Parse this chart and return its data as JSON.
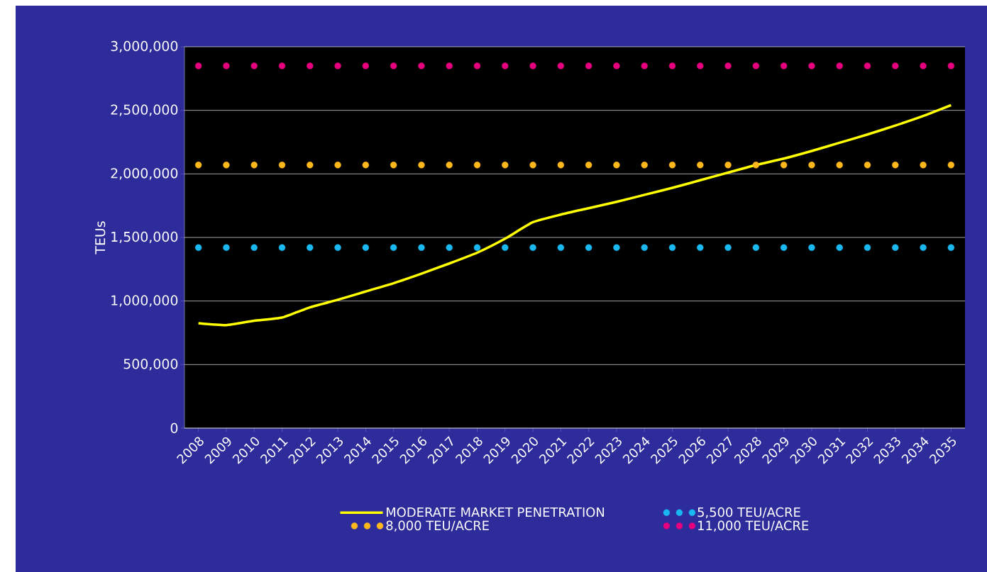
{
  "chart_data": {
    "type": "line",
    "ylabel": "TEUs",
    "categories": [
      "2008",
      "2009",
      "2010",
      "2011",
      "2012",
      "2013",
      "2014",
      "2015",
      "2016",
      "2017",
      "2018",
      "2019",
      "2020",
      "2021",
      "2022",
      "2023",
      "2024",
      "2025",
      "2026",
      "2027",
      "2028",
      "2029",
      "2030",
      "2031",
      "2032",
      "2033",
      "2034",
      "2035"
    ],
    "series": [
      {
        "name": "MODERATE MARKET PENETRATION",
        "color": "#ffff00",
        "marker": "none",
        "line_style": "solid",
        "values": [
          825000,
          810000,
          845000,
          870000,
          950000,
          1010000,
          1075000,
          1140000,
          1215000,
          1295000,
          1380000,
          1490000,
          1620000,
          1680000,
          1730000,
          1780000,
          1835000,
          1890000,
          1950000,
          2010000,
          2070000,
          2120000,
          2180000,
          2245000,
          2310000,
          2380000,
          2455000,
          2540000
        ]
      },
      {
        "name": "5,500 TEU/ACRE",
        "type": "scatter",
        "color": "#1ab8f0",
        "marker": "circle",
        "values": [
          1420000,
          1420000,
          1420000,
          1420000,
          1420000,
          1420000,
          1420000,
          1420000,
          1420000,
          1420000,
          1420000,
          1420000,
          1420000,
          1420000,
          1420000,
          1420000,
          1420000,
          1420000,
          1420000,
          1420000,
          1420000,
          1420000,
          1420000,
          1420000,
          1420000,
          1420000,
          1420000,
          1420000
        ]
      },
      {
        "name": "8,000 TEU/ACRE",
        "type": "scatter",
        "color": "#ffb81c",
        "marker": "circle",
        "values": [
          2070000,
          2070000,
          2070000,
          2070000,
          2070000,
          2070000,
          2070000,
          2070000,
          2070000,
          2070000,
          2070000,
          2070000,
          2070000,
          2070000,
          2070000,
          2070000,
          2070000,
          2070000,
          2070000,
          2070000,
          2070000,
          2070000,
          2070000,
          2070000,
          2070000,
          2070000,
          2070000,
          2070000
        ]
      },
      {
        "name": "11,000 TEU/ACRE",
        "type": "scatter",
        "color": "#e6007e",
        "marker": "circle",
        "values": [
          2850000,
          2850000,
          2850000,
          2850000,
          2850000,
          2850000,
          2850000,
          2850000,
          2850000,
          2850000,
          2850000,
          2850000,
          2850000,
          2850000,
          2850000,
          2850000,
          2850000,
          2850000,
          2850000,
          2850000,
          2850000,
          2850000,
          2850000,
          2850000,
          2850000,
          2850000,
          2850000,
          2850000
        ]
      }
    ],
    "ylim": [
      0,
      3000000
    ],
    "yticks": [
      {
        "value": 0,
        "label": "0"
      },
      {
        "value": 500000,
        "label": "500,000"
      },
      {
        "value": 1000000,
        "label": "1,000,000"
      },
      {
        "value": 1500000,
        "label": "1,500,000"
      },
      {
        "value": 2000000,
        "label": "2,000,000"
      },
      {
        "value": 2500000,
        "label": "2,500,000"
      },
      {
        "value": 3000000,
        "label": "3,000,000"
      }
    ],
    "grid": "y",
    "legend": "bottom"
  }
}
